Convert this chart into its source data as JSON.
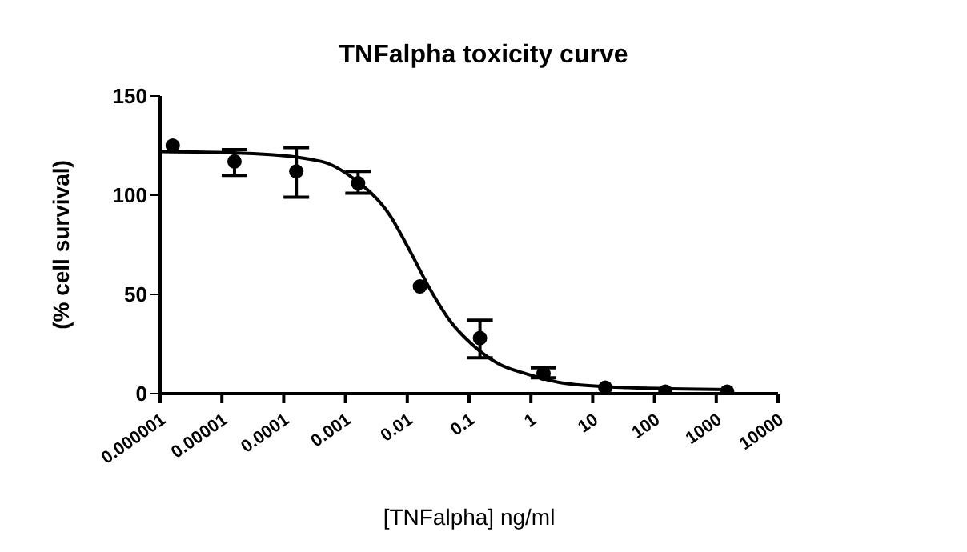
{
  "chart_data": {
    "type": "scatter",
    "title": "TNFalpha toxicity curve",
    "xlabel": "[TNFalpha] ng/ml",
    "ylabel": "(% cell survival)",
    "log": "x",
    "marker": "circle",
    "xlim": [
      1e-06,
      10000
    ],
    "xticks": [
      {
        "value": 1e-06,
        "label": "0.000001"
      },
      {
        "value": 1e-05,
        "label": "0.00001"
      },
      {
        "value": 0.0001,
        "label": "0.0001"
      },
      {
        "value": 0.001,
        "label": "0.001"
      },
      {
        "value": 0.01,
        "label": "0.01"
      },
      {
        "value": 0.1,
        "label": "0.1"
      },
      1,
      10,
      100,
      1000,
      10000
    ],
    "ylim": [
      0,
      150
    ],
    "yticks": [
      0,
      50,
      100,
      150
    ],
    "series": [
      {
        "color": "#000000",
        "x": [
          1.6e-06,
          1.6e-05,
          0.00016,
          0.0016,
          0.016,
          0.15,
          1.6,
          16,
          150,
          1500
        ],
        "values": [
          125,
          117,
          112,
          106,
          54,
          28,
          10,
          3,
          1,
          1
        ],
        "errors": [
          null,
          [
            110,
            123
          ],
          [
            99,
            124
          ],
          [
            101,
            112
          ],
          null,
          [
            18,
            37
          ],
          [
            8,
            13
          ],
          null,
          null,
          null
        ]
      },
      {
        "type": "line",
        "color": "#000000",
        "marker": "none",
        "line_style": "solid",
        "x": [
          1e-06,
          3.2e-05,
          0.00041,
          0.0014,
          0.0052,
          0.011,
          0.024,
          0.051,
          0.11,
          0.3,
          0.83,
          3.8,
          37,
          1700
        ],
        "values": [
          122,
          121,
          117,
          108,
          90,
          72,
          52,
          36,
          25,
          15,
          10,
          5,
          3,
          2
        ]
      }
    ]
  }
}
